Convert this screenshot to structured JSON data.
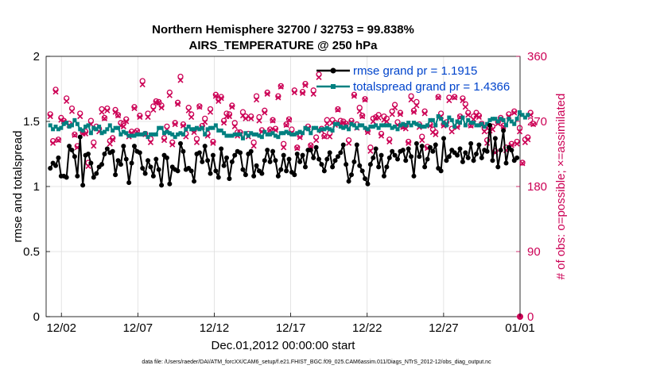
{
  "chart_data": {
    "type": "line",
    "title_line1": "Northern Hemisphere 32700 / 32753 = 99.838%",
    "title_line2": "AIRS_TEMPERATURE @ 250 hPa",
    "xlabel": "Dec.01,2012 00:00:00 start",
    "ylabel_left": "rmse and totalspread",
    "ylabel_right": "# of obs: o=possible; ×=assimilated",
    "footer": "data file: /Users/raeder/DAI/ATM_forcXX/CAM6_setup/f.e21.FHIST_BGC.f09_025.CAM6assim.011/Diags_NTrS_2012-12/obs_diag_output.nc",
    "xlim": [
      0,
      31
    ],
    "xticks": [
      1,
      6,
      11,
      16,
      21,
      26,
      31
    ],
    "xtick_labels": [
      "12/02",
      "12/07",
      "12/12",
      "12/17",
      "12/22",
      "12/27",
      "01/01"
    ],
    "ylim_left": [
      0,
      2
    ],
    "yticks_left": [
      "0",
      "0.5",
      "1",
      "1.5",
      "2"
    ],
    "ylim_right": [
      0,
      360
    ],
    "yticks_right": [
      "0",
      "90",
      "180",
      "270",
      "360"
    ],
    "colors": {
      "rmse": "#000000",
      "spread": "#008080",
      "obs": "#cc0055",
      "legend_text": "#0044cc",
      "grid": "#dddddd"
    },
    "series": [
      {
        "name": "rmse grand pr = 1.1915",
        "values": [
          1.14,
          1.18,
          1.16,
          1.22,
          1.08,
          1.08,
          1.07,
          1.31,
          1.28,
          1.23,
          1.08,
          1.38,
          1.01,
          1.24,
          1.25,
          1.18,
          1.07,
          1.1,
          1.15,
          1.17,
          1.25,
          1.29,
          1.26,
          1.27,
          1.09,
          1.2,
          1.17,
          1.31,
          1.21,
          1.03,
          1.18,
          1.31,
          1.27,
          1.26,
          1.14,
          1.1,
          1.2,
          1.15,
          1.08,
          1.21,
          1.13,
          1.01,
          1.24,
          1.22,
          1.02,
          1.15,
          1.13,
          1.12,
          1.33,
          1.27,
          1.13,
          1.14,
          1.12,
          1.04,
          1.25,
          1.26,
          1.19,
          1.31,
          1.2,
          1.1,
          1.24,
          1.12,
          1.07,
          1.29,
          1.16,
          1.22,
          1.06,
          1.19,
          1.24,
          1.27,
          1.26,
          1.13,
          1.09,
          1.25,
          1.27,
          1.08,
          1.16,
          1.12,
          1.1,
          1.2,
          1.28,
          1.19,
          1.27,
          1.2,
          1.08,
          1.13,
          1.24,
          1.12,
          1.21,
          1.11,
          1.09,
          1.25,
          1.19,
          1.24,
          1.15,
          1.28,
          1.28,
          1.22,
          1.3,
          1.21,
          1.17,
          1.12,
          1.21,
          1.26,
          1.15,
          1.2,
          1.23,
          1.26,
          1.32,
          1.17,
          1.04,
          1.09,
          1.19,
          1.32,
          1.16,
          1.12,
          1.06,
          1.02,
          1.17,
          1.22,
          1.29,
          1.15,
          1.24,
          1.08,
          1.15,
          1.22,
          1.27,
          1.24,
          1.21,
          1.27,
          1.28,
          1.2,
          1.29,
          1.23,
          1.08,
          1.33,
          1.23,
          1.31,
          1.15,
          1.21,
          1.3,
          1.27,
          1.32,
          1.14,
          1.12,
          1.37,
          1.2,
          1.23,
          1.28,
          1.26,
          1.24,
          1.29,
          1.19,
          1.26,
          1.22,
          1.33,
          1.2,
          1.25,
          1.32,
          1.22,
          1.28,
          1.27,
          1.47,
          1.2,
          1.37,
          1.15,
          1.28,
          1.43,
          1.18,
          1.3,
          1.28,
          1.2,
          1.22
        ]
      },
      {
        "name": "totalspread grand pr = 1.4366",
        "values": [
          1.47,
          1.44,
          1.46,
          1.44,
          1.45,
          1.48,
          1.49,
          1.46,
          1.47,
          1.51,
          1.48,
          1.44,
          1.43,
          1.46,
          1.47,
          1.41,
          1.45,
          1.44,
          1.46,
          1.41,
          1.42,
          1.44,
          1.47,
          1.43,
          1.45,
          1.45,
          1.4,
          1.42,
          1.41,
          1.39,
          1.39,
          1.39,
          1.4,
          1.4,
          1.4,
          1.41,
          1.38,
          1.4,
          1.4,
          1.4,
          1.45,
          1.45,
          1.41,
          1.42,
          1.41,
          1.4,
          1.38,
          1.4,
          1.41,
          1.4,
          1.44,
          1.46,
          1.44,
          1.44,
          1.45,
          1.44,
          1.45,
          1.4,
          1.44,
          1.45,
          1.45,
          1.47,
          1.43,
          1.43,
          1.41,
          1.39,
          1.39,
          1.39,
          1.4,
          1.4,
          1.4,
          1.37,
          1.41,
          1.39,
          1.41,
          1.4,
          1.4,
          1.39,
          1.38,
          1.42,
          1.4,
          1.4,
          1.41,
          1.39,
          1.38,
          1.41,
          1.41,
          1.42,
          1.41,
          1.4,
          1.4,
          1.41,
          1.42,
          1.41,
          1.45,
          1.44,
          1.41,
          1.45,
          1.45,
          1.43,
          1.44,
          1.44,
          1.45,
          1.44,
          1.43,
          1.48,
          1.48,
          1.46,
          1.45,
          1.46,
          1.44,
          1.48,
          1.47,
          1.45,
          1.47,
          1.47,
          1.45,
          1.44,
          1.46,
          1.46,
          1.47,
          1.45,
          1.47,
          1.47,
          1.47,
          1.47,
          1.45,
          1.46,
          1.44,
          1.47,
          1.48,
          1.47,
          1.49,
          1.47,
          1.49,
          1.48,
          1.47,
          1.46,
          1.46,
          1.47,
          1.51,
          1.51,
          1.47,
          1.54,
          1.52,
          1.49,
          1.47,
          1.53,
          1.51,
          1.46,
          1.5,
          1.49,
          1.53,
          1.47,
          1.51,
          1.49,
          1.49,
          1.47,
          1.47,
          1.48,
          1.46,
          1.48,
          1.51,
          1.52,
          1.52,
          1.5,
          1.52,
          1.51,
          1.47,
          1.52,
          1.5,
          1.48,
          1.52,
          1.57,
          1.55,
          1.53,
          1.55
        ]
      },
      {
        "name": "observations",
        "values": [
          280,
          243,
          314,
          245,
          275,
          271,
          302,
          267,
          288,
          252,
          236,
          281,
          255,
          256,
          213,
          271,
          241,
          263,
          260,
          287,
          275,
          288,
          243,
          247,
          286,
          279,
          268,
          267,
          273,
          252,
          256,
          290,
          257,
          278,
          326,
          253,
          281,
          246,
          291,
          298,
          297,
          292,
          247,
          263,
          310,
          241,
          268,
          296,
          332,
          266,
          253,
          289,
          280,
          258,
          246,
          291,
          264,
          274,
          253,
          287,
          242,
          307,
          301,
          304,
          271,
          281,
          280,
          292,
          268,
          255,
          255,
          283,
          277,
          253,
          277,
          241,
          305,
          276,
          258,
          285,
          310,
          259,
          272,
          260,
          305,
          319,
          239,
          266,
          273,
          259,
          313,
          234,
          250,
          311,
          322,
          263,
          237,
          313,
          248,
          335,
          260,
          250,
          272,
          254,
          272,
          268,
          287,
          271,
          270,
          267,
          244,
          271,
          307,
          266,
          289,
          278,
          301,
          257,
          234,
          274,
          276,
          279,
          253,
          277,
          274,
          245,
          284,
          293,
          269,
          282,
          263,
          264,
          242,
          305,
          285,
          297,
          266,
          249,
          284,
          235,
          266,
          259,
          255,
          304,
          281,
          266,
          269,
          303,
          260,
          304,
          264,
          277,
          302,
          294,
          282,
          265,
          277,
          282,
          278,
          267,
          261,
          244,
          261,
          263,
          229,
          269,
          275,
          264,
          234,
          280,
          239,
          284,
          242,
          261,
          213,
          245,
          248,
          282,
          267
        ]
      },
      {
        "name": "observations_assimilated",
        "values": [
          277,
          240,
          311,
          244,
          272,
          270,
          298,
          265,
          284,
          251,
          234,
          277,
          253,
          253,
          208,
          266,
          236,
          260,
          256,
          283,
          274,
          285,
          239,
          245,
          283,
          278,
          264,
          263,
          270,
          249,
          254,
          288,
          256,
          276,
          321,
          252,
          276,
          241,
          286,
          296,
          296,
          289,
          244,
          259,
          306,
          238,
          266,
          294,
          327,
          264,
          249,
          285,
          276,
          255,
          241,
          290,
          262,
          269,
          250,
          283,
          240,
          305,
          298,
          302,
          268,
          277,
          277,
          290,
          263,
          250,
          253,
          278,
          274,
          249,
          274,
          236,
          300,
          271,
          256,
          282,
          308,
          258,
          271,
          258,
          303,
          318,
          234,
          265,
          272,
          254,
          310,
          233,
          248,
          309,
          320,
          261,
          236,
          308,
          244,
          331,
          257,
          249,
          267,
          249,
          268,
          265,
          286,
          267,
          268,
          266,
          240,
          269,
          305,
          261,
          284,
          277,
          300,
          255,
          229,
          270,
          275,
          275,
          250,
          272,
          270,
          242,
          280,
          289,
          265,
          280,
          262,
          260,
          240,
          300,
          283,
          292,
          262,
          244,
          281,
          233,
          264,
          255,
          252,
          303,
          277,
          264,
          267,
          299,
          256,
          303,
          262,
          276,
          299,
          290,
          279,
          264,
          273,
          279,
          276,
          266,
          256,
          240,
          257,
          259,
          227,
          267,
          272,
          263,
          230,
          277,
          237,
          282,
          239,
          256,
          212,
          241,
          245,
          279,
          266
        ]
      }
    ]
  }
}
